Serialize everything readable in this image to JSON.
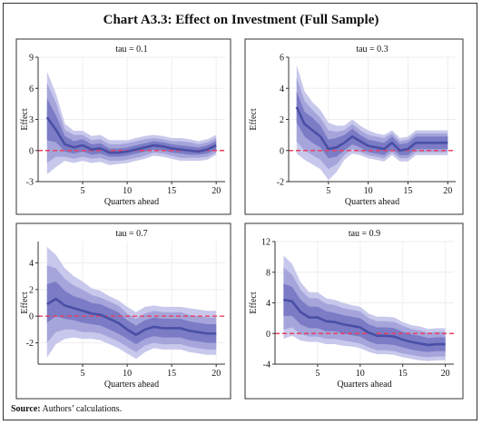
{
  "figure": {
    "title": "Chart A3.3: Effect on Investment (Full Sample)",
    "source_label": "Source:",
    "source_text": "Authors’ calculations."
  },
  "colors": {
    "band_outer": "#c8c8ec",
    "band_mid": "#a5a5db",
    "band_inner": "#7b7bc6",
    "line": "#4a4fa6",
    "zero_line": "#e8405f",
    "grid": "#eeeeee"
  },
  "chart_data": [
    {
      "type": "area",
      "title": "tau = 0.1",
      "xlabel": "Quarters ahead",
      "ylabel": "Effect",
      "xlim": [
        0,
        21
      ],
      "ylim": [
        -3,
        9
      ],
      "xticks": [
        5,
        10,
        15,
        20
      ],
      "yticks": [
        -3,
        0,
        3,
        6,
        9
      ],
      "x": [
        1,
        2,
        3,
        4,
        5,
        6,
        7,
        8,
        9,
        10,
        11,
        12,
        13,
        14,
        15,
        16,
        17,
        18,
        19,
        20
      ],
      "series": [
        {
          "values": [
            3.2,
            2.0,
            0.6,
            0.3,
            0.5,
            0.1,
            0.2,
            -0.2,
            -0.2,
            -0.1,
            0.1,
            0.3,
            0.5,
            0.4,
            0.2,
            0.1,
            0.0,
            -0.1,
            0.1,
            0.5
          ],
          "band_inner_lo": [
            1.0,
            0.8,
            -0.1,
            -0.3,
            -0.1,
            -0.4,
            -0.3,
            -0.6,
            -0.6,
            -0.5,
            -0.3,
            -0.1,
            0.1,
            0.0,
            -0.2,
            -0.3,
            -0.4,
            -0.4,
            -0.3,
            0.1
          ],
          "band_inner_hi": [
            5.0,
            3.4,
            1.4,
            0.9,
            1.1,
            0.6,
            0.7,
            0.2,
            0.2,
            0.3,
            0.5,
            0.7,
            0.9,
            0.8,
            0.6,
            0.5,
            0.4,
            0.3,
            0.5,
            0.9
          ],
          "band_mid_lo": [
            -1.2,
            -0.6,
            -0.6,
            -0.8,
            -0.6,
            -0.8,
            -0.7,
            -1.0,
            -1.0,
            -0.9,
            -0.7,
            -0.5,
            -0.2,
            -0.3,
            -0.5,
            -0.7,
            -0.7,
            -0.7,
            -0.6,
            -0.2
          ],
          "band_mid_hi": [
            6.5,
            4.6,
            2.0,
            1.5,
            1.5,
            1.0,
            1.1,
            0.6,
            0.6,
            0.7,
            0.9,
            1.1,
            1.2,
            1.1,
            0.9,
            0.9,
            0.8,
            0.6,
            0.8,
            1.2
          ],
          "band_outer_lo": [
            -2.3,
            -1.6,
            -1.0,
            -1.2,
            -1.0,
            -1.2,
            -1.1,
            -1.4,
            -1.3,
            -1.2,
            -1.0,
            -0.8,
            -0.5,
            -0.6,
            -0.8,
            -1.0,
            -1.0,
            -1.0,
            -0.9,
            -0.4
          ],
          "band_outer_hi": [
            7.6,
            5.5,
            2.6,
            1.9,
            1.9,
            1.4,
            1.5,
            1.0,
            1.0,
            1.0,
            1.2,
            1.4,
            1.5,
            1.4,
            1.2,
            1.2,
            1.1,
            0.9,
            1.1,
            1.5
          ]
        }
      ],
      "reference_line": 0
    },
    {
      "type": "area",
      "title": "tau = 0.3",
      "xlabel": "Quarters ahead",
      "ylabel": "Effect",
      "xlim": [
        0,
        21
      ],
      "ylim": [
        -2,
        6
      ],
      "xticks": [
        5,
        10,
        15,
        20
      ],
      "yticks": [
        -2,
        0,
        2,
        4,
        6
      ],
      "x": [
        1,
        2,
        3,
        4,
        5,
        6,
        7,
        8,
        9,
        10,
        11,
        12,
        13,
        14,
        15,
        16,
        17,
        18,
        19,
        20
      ],
      "series": [
        {
          "values": [
            2.8,
            1.7,
            1.3,
            0.9,
            0.1,
            0.2,
            0.5,
            0.9,
            0.6,
            0.3,
            0.2,
            0.1,
            0.5,
            0.0,
            0.1,
            0.5,
            0.5,
            0.5,
            0.5,
            0.5
          ],
          "band_inner_lo": [
            1.8,
            0.9,
            0.5,
            0.2,
            -0.5,
            -0.4,
            0.0,
            0.4,
            0.2,
            -0.1,
            -0.2,
            -0.3,
            0.1,
            -0.3,
            -0.3,
            0.1,
            0.1,
            0.1,
            0.1,
            0.1
          ],
          "band_inner_hi": [
            3.8,
            2.5,
            2.1,
            1.6,
            0.7,
            0.8,
            1.0,
            1.4,
            1.0,
            0.7,
            0.6,
            0.5,
            0.9,
            0.4,
            0.5,
            0.9,
            0.9,
            0.9,
            0.9,
            0.9
          ],
          "band_mid_lo": [
            0.6,
            0.0,
            -0.3,
            -0.6,
            -1.2,
            -0.9,
            -0.3,
            0.1,
            -0.1,
            -0.3,
            -0.4,
            -0.5,
            -0.1,
            -0.5,
            -0.5,
            -0.1,
            -0.1,
            -0.1,
            -0.1,
            -0.1
          ],
          "band_mid_hi": [
            4.7,
            3.2,
            2.6,
            2.1,
            1.3,
            1.2,
            1.3,
            1.7,
            1.3,
            1.0,
            0.9,
            0.8,
            1.1,
            0.6,
            0.7,
            1.1,
            1.1,
            1.1,
            1.1,
            1.1
          ],
          "band_outer_lo": [
            -0.2,
            -0.6,
            -0.9,
            -1.2,
            -1.9,
            -1.4,
            -0.6,
            -0.2,
            -0.3,
            -0.5,
            -0.6,
            -0.7,
            -0.3,
            -0.7,
            -0.7,
            -0.3,
            -0.3,
            -0.3,
            -0.3,
            -0.3
          ],
          "band_outer_hi": [
            5.5,
            3.8,
            3.1,
            2.6,
            1.8,
            1.6,
            1.6,
            2.0,
            1.6,
            1.3,
            1.1,
            1.0,
            1.3,
            0.8,
            0.9,
            1.3,
            1.3,
            1.3,
            1.3,
            1.3
          ]
        }
      ],
      "reference_line": 0
    },
    {
      "type": "area",
      "title": "tau = 0.7",
      "xlabel": "Quarters ahead",
      "ylabel": "Effect",
      "xlim": [
        0,
        21
      ],
      "ylim": [
        -3.6,
        5.6
      ],
      "xticks": [
        5,
        10,
        15,
        20
      ],
      "yticks": [
        -2,
        0,
        2,
        4
      ],
      "x": [
        1,
        2,
        3,
        4,
        5,
        6,
        7,
        8,
        9,
        10,
        11,
        12,
        13,
        14,
        15,
        16,
        17,
        18,
        19,
        20
      ],
      "series": [
        {
          "values": [
            0.9,
            1.3,
            0.8,
            0.6,
            0.4,
            0.2,
            0.1,
            -0.2,
            -0.5,
            -1.0,
            -1.4,
            -1.0,
            -0.8,
            -0.9,
            -0.9,
            -0.9,
            -1.1,
            -1.2,
            -1.3,
            -1.3
          ],
          "band_inner_lo": [
            -0.5,
            0.0,
            -0.2,
            -0.3,
            -0.5,
            -0.6,
            -0.7,
            -1.0,
            -1.3,
            -1.7,
            -2.1,
            -1.7,
            -1.5,
            -1.6,
            -1.6,
            -1.6,
            -1.8,
            -1.9,
            -2.0,
            -2.0
          ],
          "band_inner_hi": [
            2.4,
            2.6,
            1.9,
            1.5,
            1.3,
            1.0,
            0.9,
            0.6,
            0.3,
            -0.3,
            -0.7,
            -0.3,
            -0.1,
            -0.2,
            -0.2,
            -0.2,
            -0.4,
            -0.5,
            -0.6,
            -0.6
          ],
          "band_mid_lo": [
            -2.0,
            -1.2,
            -1.0,
            -1.0,
            -1.2,
            -1.2,
            -1.3,
            -1.6,
            -1.9,
            -2.3,
            -2.7,
            -2.2,
            -2.0,
            -2.1,
            -2.1,
            -2.1,
            -2.3,
            -2.4,
            -2.5,
            -2.5
          ],
          "band_mid_hi": [
            3.8,
            3.6,
            2.8,
            2.3,
            2.0,
            1.6,
            1.4,
            1.1,
            0.8,
            0.2,
            -0.2,
            0.2,
            0.4,
            0.3,
            0.3,
            0.3,
            0.1,
            0.0,
            -0.1,
            -0.1
          ],
          "band_outer_lo": [
            -3.1,
            -2.1,
            -1.7,
            -1.6,
            -1.7,
            -1.7,
            -1.8,
            -2.1,
            -2.4,
            -2.8,
            -3.2,
            -2.7,
            -2.4,
            -2.5,
            -2.5,
            -2.5,
            -2.7,
            -2.8,
            -2.9,
            -2.9
          ],
          "band_outer_hi": [
            5.2,
            4.6,
            3.6,
            3.0,
            2.6,
            2.1,
            1.9,
            1.5,
            1.2,
            0.7,
            0.3,
            0.7,
            0.8,
            0.7,
            0.7,
            0.7,
            0.6,
            0.5,
            0.4,
            0.4
          ]
        }
      ],
      "reference_line": 0
    },
    {
      "type": "area",
      "title": "tau = 0.9",
      "xlabel": "Quarters ahead",
      "ylabel": "Effect",
      "xlim": [
        0,
        21
      ],
      "ylim": [
        -4,
        12
      ],
      "xticks": [
        5,
        10,
        15,
        20
      ],
      "yticks": [
        -4,
        0,
        4,
        8,
        12
      ],
      "x": [
        1,
        2,
        3,
        4,
        5,
        6,
        7,
        8,
        9,
        10,
        11,
        12,
        13,
        14,
        15,
        16,
        17,
        18,
        19,
        20
      ],
      "series": [
        {
          "values": [
            4.4,
            4.2,
            2.8,
            2.1,
            2.1,
            1.6,
            1.5,
            1.2,
            1.0,
            0.8,
            0.1,
            -0.3,
            -0.3,
            -0.4,
            -0.8,
            -1.1,
            -1.3,
            -1.5,
            -1.4,
            -1.4
          ],
          "band_inner_lo": [
            2.3,
            2.3,
            1.2,
            0.7,
            0.7,
            0.3,
            0.3,
            0.0,
            -0.2,
            -0.4,
            -1.0,
            -1.4,
            -1.4,
            -1.5,
            -1.8,
            -2.1,
            -2.3,
            -2.4,
            -2.3,
            -2.3
          ],
          "band_inner_hi": [
            6.5,
            6.1,
            4.4,
            3.5,
            3.5,
            2.9,
            2.7,
            2.4,
            2.2,
            2.0,
            1.2,
            0.8,
            0.8,
            0.7,
            0.2,
            -0.1,
            -0.3,
            -0.6,
            -0.5,
            -0.5
          ],
          "band_mid_lo": [
            0.5,
            0.8,
            -0.1,
            -0.4,
            -0.4,
            -0.7,
            -0.7,
            -0.9,
            -1.1,
            -1.3,
            -1.8,
            -2.2,
            -2.2,
            -2.3,
            -2.6,
            -2.8,
            -3.0,
            -3.1,
            -3.0,
            -3.0
          ],
          "band_mid_hi": [
            8.6,
            7.7,
            5.7,
            4.6,
            4.6,
            3.9,
            3.7,
            3.3,
            3.1,
            2.9,
            2.0,
            1.6,
            1.6,
            1.5,
            1.0,
            0.6,
            0.4,
            0.1,
            0.2,
            0.2
          ],
          "band_outer_lo": [
            -0.7,
            -0.3,
            -0.9,
            -1.1,
            -1.1,
            -1.4,
            -1.4,
            -1.6,
            -1.7,
            -1.9,
            -2.4,
            -2.7,
            -2.7,
            -2.8,
            -3.1,
            -3.3,
            -3.5,
            -3.6,
            -3.5,
            -3.5
          ],
          "band_outer_hi": [
            10.2,
            9.1,
            6.7,
            5.4,
            5.4,
            4.6,
            4.4,
            4.0,
            3.7,
            3.5,
            2.6,
            2.2,
            2.2,
            2.1,
            1.5,
            1.1,
            0.9,
            0.6,
            0.7,
            0.7
          ]
        }
      ],
      "reference_line": 0
    }
  ]
}
